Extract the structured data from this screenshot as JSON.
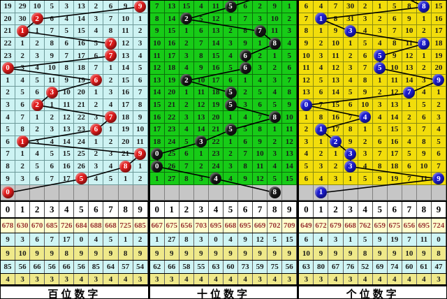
{
  "chart_data": {
    "type": "table",
    "description": "Lottery 3-digit trend chart: miss counts per digit column, drawn digit shown as ball",
    "digit_header": [
      "0",
      "1",
      "2",
      "3",
      "4",
      "5",
      "6",
      "7",
      "8",
      "9"
    ],
    "pending_row_bg": "#c6c6c6",
    "line_color": "#000000",
    "stats_row_styles": [
      {
        "bg": "#ffffcc",
        "fg": "#993333"
      },
      {
        "bg": "#cff5f5",
        "fg": "#1b1b1b"
      },
      {
        "bg": "#efe98a",
        "fg": "#1b1b1b"
      },
      {
        "bg": "#cff5f5",
        "fg": "#1b1b1b"
      },
      {
        "bg": "#efe98a",
        "fg": "#1b1b1b"
      }
    ],
    "panels": [
      {
        "title": "百位数字",
        "cell_bg": "#cdf3f3",
        "grid_line": "#6e9a9a",
        "ball_color": "#e11b1b",
        "lead_stub_col": null,
        "rows": [
          [
            19,
            29,
            10,
            5,
            3,
            13,
            2,
            6,
            9,
            "(9)"
          ],
          [
            20,
            30,
            "(2)",
            6,
            4,
            14,
            3,
            7,
            10,
            1
          ],
          [
            21,
            "(1)",
            1,
            7,
            5,
            15,
            4,
            8,
            11,
            2
          ],
          [
            22,
            1,
            2,
            8,
            6,
            16,
            5,
            "(7)",
            12,
            3
          ],
          [
            23,
            2,
            3,
            9,
            7,
            17,
            6,
            "(7)",
            13,
            4
          ],
          [
            "(0)",
            3,
            4,
            10,
            8,
            18,
            7,
            1,
            14,
            5
          ],
          [
            1,
            4,
            5,
            11,
            9,
            19,
            "(6)",
            2,
            15,
            6
          ],
          [
            2,
            5,
            6,
            "(3)",
            10,
            20,
            1,
            3,
            16,
            7
          ],
          [
            3,
            6,
            "(2)",
            1,
            11,
            21,
            2,
            4,
            17,
            8
          ],
          [
            4,
            7,
            1,
            2,
            12,
            22,
            3,
            "(7)",
            18,
            9
          ],
          [
            5,
            8,
            2,
            3,
            13,
            23,
            "(6)",
            1,
            19,
            10
          ],
          [
            6,
            "(1)",
            3,
            4,
            14,
            24,
            1,
            2,
            20,
            11
          ],
          [
            7,
            1,
            4,
            5,
            15,
            25,
            2,
            3,
            21,
            "(9)"
          ],
          [
            8,
            2,
            5,
            6,
            16,
            26,
            3,
            4,
            "(8)",
            1
          ],
          [
            9,
            3,
            6,
            7,
            17,
            "(5)",
            4,
            5,
            1,
            2
          ]
        ],
        "pending_ball": {
          "col": 0,
          "num": "0"
        },
        "stats": [
          [
            678,
            630,
            670,
            685,
            726,
            684,
            688,
            668,
            725,
            685
          ],
          [
            9,
            3,
            6,
            7,
            17,
            0,
            4,
            5,
            1,
            2
          ],
          [
            9,
            10,
            9,
            9,
            8,
            9,
            9,
            9,
            8,
            9
          ],
          [
            85,
            56,
            66,
            56,
            66,
            56,
            85,
            64,
            57,
            54
          ],
          [
            4,
            3,
            3,
            3,
            3,
            4,
            3,
            4,
            4,
            3
          ]
        ]
      },
      {
        "title": "十位数字",
        "cell_bg": "#17cb17",
        "grid_line": "#0b6e0b",
        "ball_color": "#161616",
        "lead_stub_col": 6.6,
        "rows": [
          [
            7,
            13,
            15,
            4,
            11,
            "(5)",
            6,
            2,
            9,
            1
          ],
          [
            8,
            14,
            "(2)",
            5,
            12,
            1,
            7,
            3,
            10,
            2
          ],
          [
            9,
            15,
            1,
            6,
            13,
            2,
            8,
            "(7)",
            11,
            3
          ],
          [
            10,
            16,
            2,
            7,
            14,
            3,
            9,
            1,
            "(8)",
            4
          ],
          [
            11,
            17,
            3,
            8,
            15,
            4,
            "(6)",
            2,
            1,
            5
          ],
          [
            12,
            18,
            4,
            9,
            16,
            5,
            "(6)",
            3,
            2,
            6
          ],
          [
            13,
            19,
            "(2)",
            10,
            17,
            6,
            1,
            4,
            3,
            7
          ],
          [
            14,
            20,
            1,
            11,
            18,
            "(5)",
            2,
            5,
            4,
            8
          ],
          [
            15,
            21,
            2,
            12,
            19,
            "(5)",
            3,
            6,
            5,
            9
          ],
          [
            16,
            22,
            3,
            13,
            20,
            1,
            4,
            7,
            "(8)",
            10
          ],
          [
            17,
            23,
            4,
            14,
            21,
            "(5)",
            5,
            8,
            1,
            11
          ],
          [
            18,
            24,
            5,
            "(3)",
            22,
            1,
            6,
            9,
            2,
            12
          ],
          [
            "(0)",
            25,
            6,
            1,
            23,
            2,
            7,
            10,
            3,
            13
          ],
          [
            "(0)",
            26,
            7,
            2,
            24,
            3,
            8,
            11,
            4,
            14
          ],
          [
            1,
            27,
            8,
            3,
            "(4)",
            4,
            9,
            12,
            5,
            15
          ]
        ],
        "pending_ball": {
          "col": 8,
          "num": "8"
        },
        "stats": [
          [
            667,
            675,
            656,
            703,
            695,
            668,
            695,
            669,
            702,
            709
          ],
          [
            1,
            27,
            8,
            3,
            0,
            4,
            9,
            12,
            5,
            15
          ],
          [
            9,
            9,
            9,
            9,
            9,
            9,
            9,
            9,
            9,
            9
          ],
          [
            62,
            66,
            58,
            55,
            63,
            60,
            73,
            59,
            75,
            56
          ],
          [
            3,
            3,
            4,
            4,
            4,
            4,
            4,
            3,
            4,
            3
          ]
        ]
      },
      {
        "title": "个位数字",
        "cell_bg": "#f2dd0b",
        "grid_line": "#8a8a12",
        "ball_color": "#1b1bd0",
        "lead_stub_col": 6.9,
        "rows": [
          [
            6,
            4,
            7,
            30,
            2,
            1,
            5,
            8,
            "(8)",
            15
          ],
          [
            7,
            "(1)",
            8,
            31,
            3,
            2,
            6,
            9,
            1,
            16
          ],
          [
            8,
            1,
            9,
            "(3)",
            4,
            3,
            7,
            10,
            2,
            17
          ],
          [
            9,
            2,
            10,
            1,
            5,
            4,
            8,
            11,
            "(8)",
            18
          ],
          [
            10,
            3,
            11,
            2,
            6,
            "(5)",
            9,
            12,
            1,
            19
          ],
          [
            11,
            4,
            12,
            3,
            7,
            "(5)",
            10,
            13,
            2,
            20
          ],
          [
            12,
            5,
            13,
            4,
            8,
            1,
            11,
            14,
            3,
            "(9)"
          ],
          [
            13,
            6,
            14,
            5,
            9,
            2,
            12,
            "(7)",
            4,
            1
          ],
          [
            "(0)",
            7,
            15,
            6,
            10,
            3,
            13,
            1,
            5,
            2
          ],
          [
            1,
            8,
            16,
            7,
            "(4)",
            4,
            14,
            2,
            6,
            3
          ],
          [
            2,
            "(1)",
            17,
            8,
            1,
            5,
            15,
            3,
            7,
            4
          ],
          [
            3,
            1,
            "(2)",
            9,
            2,
            6,
            16,
            4,
            8,
            5
          ],
          [
            4,
            2,
            1,
            "(3)",
            3,
            7,
            17,
            5,
            9,
            6
          ],
          [
            5,
            3,
            2,
            "(3)",
            4,
            8,
            18,
            6,
            10,
            7
          ],
          [
            6,
            4,
            3,
            1,
            5,
            9,
            19,
            7,
            11,
            "(9)"
          ]
        ],
        "pending_ball": {
          "col": 1,
          "num": "1"
        },
        "stats": [
          [
            649,
            672,
            679,
            668,
            762,
            659,
            675,
            656,
            695,
            724
          ],
          [
            6,
            4,
            3,
            1,
            5,
            9,
            19,
            7,
            11,
            0
          ],
          [
            10,
            9,
            9,
            9,
            8,
            9,
            9,
            10,
            9,
            8
          ],
          [
            63,
            80,
            67,
            76,
            52,
            69,
            74,
            60,
            61,
            47
          ],
          [
            3,
            3,
            4,
            3,
            4,
            4,
            4,
            4,
            4,
            3
          ]
        ]
      }
    ]
  }
}
